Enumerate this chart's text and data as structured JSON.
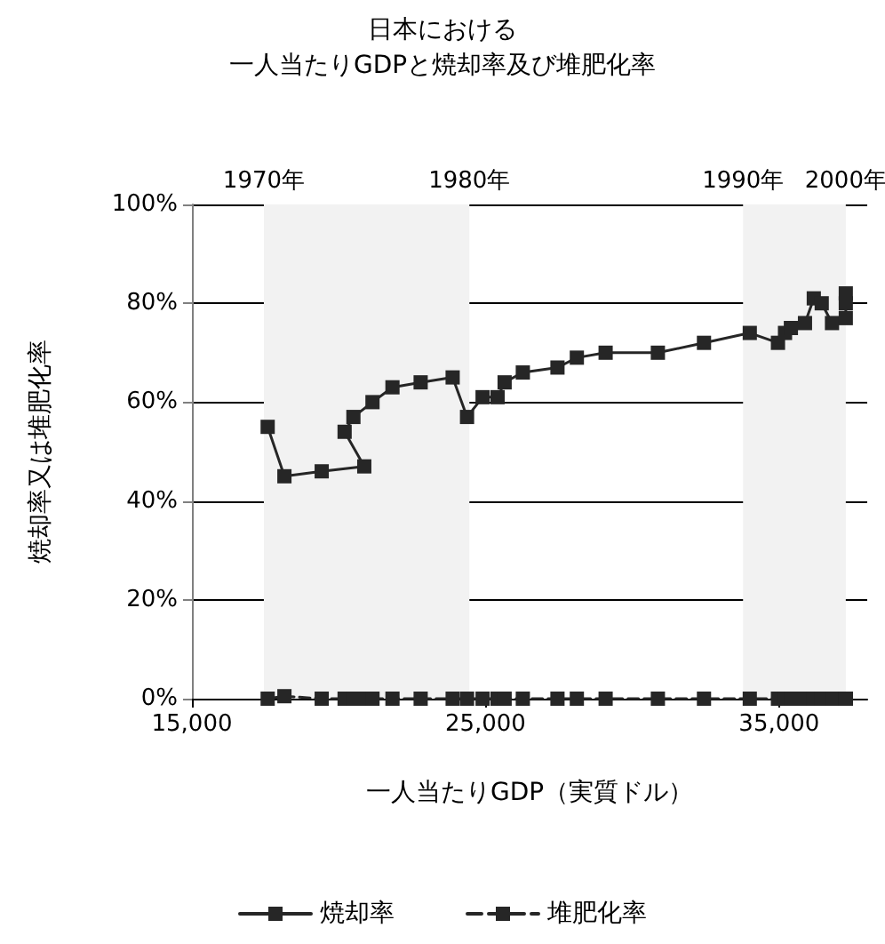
{
  "chart_data": {
    "type": "line",
    "title": "日本における",
    "subtitle": "一人当たりGDPと焼却率及び堆肥化率",
    "xlabel": "一人当たりGDP（実質ドル）",
    "ylabel": "焼却率又は堆肥化率",
    "xlim": [
      15000,
      38000
    ],
    "xticks": [
      {
        "value": 15000,
        "label": "15,000"
      },
      {
        "value": 25000,
        "label": "25,000"
      },
      {
        "value": 35000,
        "label": "35,000"
      }
    ],
    "ylim": [
      0,
      100
    ],
    "yticks": [
      {
        "value": 0,
        "label": "0%"
      },
      {
        "value": 20,
        "label": "20%"
      },
      {
        "value": 40,
        "label": "40%"
      },
      {
        "value": 60,
        "label": "60%"
      },
      {
        "value": 80,
        "label": "80%"
      },
      {
        "value": 100,
        "label": "100%"
      }
    ],
    "grid": "y",
    "legend": "bottom",
    "marker": "square",
    "bands": [
      {
        "axis": "x",
        "from": 17450,
        "to": 24450,
        "color": "#f2f2f2"
      },
      {
        "axis": "x",
        "from": 33770,
        "to": 37270,
        "color": "#f2f2f2"
      }
    ],
    "annotations": [
      "1970年",
      "1980年",
      "1990年",
      "2000年"
    ],
    "series": [
      {
        "name": "焼却率",
        "color": "#262626",
        "line_style": "solid",
        "x": [
          17580,
          18150,
          19420,
          20870,
          20200,
          20500,
          21150,
          21830,
          22790,
          23880,
          24370,
          24900,
          25410,
          25650,
          26270,
          27450,
          28110,
          29090,
          30870,
          32440,
          34000,
          34960,
          35200,
          35400,
          35880,
          36180,
          36450,
          36800,
          37270,
          37270,
          37270
        ],
        "values": [
          55,
          45,
          46,
          47,
          54,
          57,
          60,
          63,
          64,
          65,
          57,
          61,
          61,
          64,
          66,
          67,
          69,
          70,
          70,
          72,
          74,
          72,
          74,
          75,
          76,
          81,
          80,
          76,
          77,
          80,
          82
        ]
      },
      {
        "name": "堆肥化率",
        "color": "#262626",
        "line_style": "dashed",
        "x": [
          17580,
          18150,
          19420,
          20870,
          20200,
          20500,
          21150,
          21830,
          22790,
          23880,
          24370,
          24900,
          25410,
          25650,
          26270,
          27450,
          28110,
          29090,
          30870,
          32440,
          34000,
          34960,
          35200,
          35400,
          35880,
          36180,
          36450,
          36800,
          37270,
          37270,
          37270
        ],
        "values": [
          0,
          0.5,
          0,
          0,
          0,
          0,
          0,
          0,
          0,
          0,
          0,
          0,
          0,
          0,
          0,
          0,
          0,
          0,
          0,
          0,
          0,
          0,
          0,
          0,
          0,
          0,
          0,
          0,
          0,
          0,
          0
        ]
      }
    ]
  }
}
